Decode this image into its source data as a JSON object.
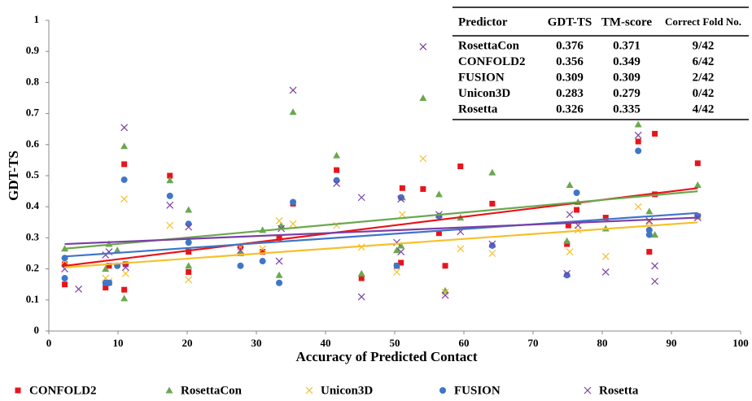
{
  "chart_data": {
    "type": "scatter",
    "x_label": "Accuracy of Predicted Contact",
    "y_label": "GDT-TS",
    "xlim": [
      0,
      100
    ],
    "xticks": [
      0,
      10,
      20,
      30,
      40,
      50,
      60,
      70,
      80,
      90,
      100
    ],
    "ylim": [
      0,
      1
    ],
    "yticks": [
      0,
      0.1,
      0.2,
      0.3,
      0.4,
      0.5,
      0.6,
      0.7,
      0.8,
      0.9,
      1
    ],
    "series": [
      {
        "name": "CONFOLD2",
        "color": "#e8141a",
        "marker": "square",
        "x": [
          2.3,
          2.3,
          8.2,
          8.7,
          8.7,
          10.9,
          10.9,
          11.1,
          17.5,
          20.2,
          20.2,
          27.7,
          30.9,
          33.3,
          35.3,
          41.6,
          45.2,
          50.3,
          50.9,
          51.1,
          54.1,
          56.4,
          57.3,
          59.5,
          64.1,
          74.9,
          75.1,
          76.3,
          80.5,
          85.2,
          86.8,
          87.6,
          87.6,
          93.8
        ],
        "values": [
          0.15,
          0.215,
          0.14,
          0.155,
          0.21,
          0.537,
          0.133,
          0.215,
          0.5,
          0.19,
          0.255,
          0.27,
          0.255,
          0.3,
          0.41,
          0.518,
          0.17,
          0.21,
          0.22,
          0.46,
          0.457,
          0.315,
          0.21,
          0.53,
          0.41,
          0.28,
          0.34,
          0.39,
          0.365,
          0.61,
          0.255,
          0.635,
          0.44,
          0.54
        ],
        "trend": {
          "x": [
            2.3,
            93.8
          ],
          "values": [
            0.21,
            0.46
          ]
        }
      },
      {
        "name": "RosettaCon",
        "color": "#6aa84f",
        "marker": "triangle",
        "x": [
          2.3,
          8.2,
          8.7,
          9.9,
          10.9,
          10.9,
          17.5,
          20.2,
          20.2,
          27.7,
          30.9,
          33.3,
          33.6,
          35.3,
          41.6,
          45.2,
          50.3,
          50.9,
          51.1,
          54.1,
          56.4,
          57.3,
          59.5,
          64.1,
          74.9,
          75.3,
          76.5,
          80.5,
          85.2,
          86.8,
          87.6,
          93.8
        ],
        "values": [
          0.265,
          0.2,
          0.28,
          0.26,
          0.595,
          0.105,
          0.485,
          0.39,
          0.21,
          0.25,
          0.325,
          0.18,
          0.34,
          0.705,
          0.565,
          0.185,
          0.26,
          0.275,
          0.43,
          0.75,
          0.44,
          0.13,
          0.365,
          0.51,
          0.29,
          0.47,
          0.415,
          0.33,
          0.665,
          0.385,
          0.31,
          0.47
        ],
        "trend": {
          "x": [
            2.3,
            93.8
          ],
          "values": [
            0.265,
            0.45
          ]
        }
      },
      {
        "name": "Unicon3D",
        "color": "#f5c02a",
        "marker": "x",
        "x": [
          2.3,
          8.2,
          8.7,
          10.9,
          11.1,
          17.5,
          20.2,
          27.7,
          30.9,
          33.3,
          35.3,
          41.6,
          45.2,
          50.3,
          51.1,
          54.1,
          57.3,
          59.5,
          64.1,
          75.3,
          76.5,
          80.5,
          85.2,
          86.8,
          93.8
        ],
        "values": [
          0.225,
          0.17,
          0.16,
          0.425,
          0.185,
          0.34,
          0.165,
          0.27,
          0.265,
          0.355,
          0.345,
          0.34,
          0.27,
          0.19,
          0.375,
          0.555,
          0.125,
          0.265,
          0.25,
          0.255,
          0.325,
          0.24,
          0.4,
          0.35,
          0.37
        ],
        "trend": {
          "x": [
            2.3,
            93.8
          ],
          "values": [
            0.205,
            0.35
          ]
        }
      },
      {
        "name": "FUSION",
        "color": "#3f76c8",
        "marker": "circle",
        "x": [
          2.3,
          2.3,
          8.2,
          8.7,
          9.9,
          10.9,
          17.5,
          20.2,
          20.2,
          27.7,
          30.9,
          33.3,
          35.3,
          41.6,
          50.3,
          50.9,
          56.4,
          64.1,
          74.9,
          76.3,
          85.2,
          86.8,
          86.8,
          93.8
        ],
        "values": [
          0.17,
          0.235,
          0.155,
          0.155,
          0.21,
          0.487,
          0.435,
          0.345,
          0.285,
          0.21,
          0.225,
          0.155,
          0.415,
          0.485,
          0.21,
          0.43,
          0.37,
          0.275,
          0.18,
          0.445,
          0.58,
          0.325,
          0.31,
          0.37
        ],
        "trend": {
          "x": [
            2.3,
            93.8
          ],
          "values": [
            0.24,
            0.38
          ]
        }
      },
      {
        "name": "Rosetta",
        "color": "#7b3fa6",
        "marker": "x",
        "x": [
          2.3,
          4.3,
          8.2,
          8.7,
          10.9,
          11.1,
          17.5,
          20.2,
          27.7,
          33.3,
          33.6,
          35.3,
          41.6,
          45.2,
          45.2,
          50.3,
          50.9,
          50.9,
          54.1,
          56.4,
          57.3,
          59.5,
          64.1,
          74.9,
          75.3,
          76.5,
          80.5,
          85.2,
          86.8,
          87.6,
          87.6,
          93.8
        ],
        "values": [
          0.2,
          0.135,
          0.245,
          0.255,
          0.655,
          0.205,
          0.405,
          0.335,
          0.26,
          0.225,
          0.33,
          0.775,
          0.475,
          0.43,
          0.11,
          0.285,
          0.255,
          0.425,
          0.915,
          0.375,
          0.115,
          0.32,
          0.28,
          0.185,
          0.375,
          0.34,
          0.19,
          0.63,
          0.355,
          0.21,
          0.16,
          0.365
        ],
        "trend": {
          "x": [
            2.3,
            93.8
          ],
          "values": [
            0.28,
            0.365
          ]
        }
      }
    ],
    "table": {
      "columns": [
        "Predictor",
        "GDT-TS",
        "TM-score",
        "Correct Fold No."
      ],
      "rows": [
        [
          "RosettaCon",
          0.376,
          0.371,
          "9/42"
        ],
        [
          "CONFOLD2",
          0.356,
          0.349,
          "6/42"
        ],
        [
          "FUSION",
          0.309,
          0.309,
          "2/42"
        ],
        [
          "Unicon3D",
          0.283,
          0.279,
          "0/42"
        ],
        [
          "Rosetta",
          0.326,
          0.335,
          "4/42"
        ]
      ]
    }
  }
}
